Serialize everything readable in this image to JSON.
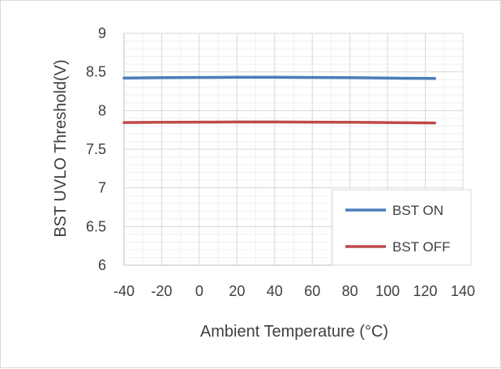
{
  "chart_data": {
    "type": "line",
    "xlabel": "Ambient Temperature (°C)",
    "ylabel": "BST UVLO Threshold(V)",
    "xlim": [
      -40,
      140
    ],
    "ylim": [
      6,
      9
    ],
    "x_ticks": [
      -40,
      -20,
      0,
      20,
      40,
      60,
      80,
      100,
      120,
      140
    ],
    "y_ticks": [
      6,
      6.5,
      7,
      7.5,
      8,
      8.5,
      9
    ],
    "grid": true,
    "legend_position": "bottom-right",
    "series": [
      {
        "name": "BST ON",
        "color": "#4a7ebb",
        "x": [
          -40,
          -20,
          0,
          20,
          40,
          60,
          80,
          100,
          125
        ],
        "y": [
          8.42,
          8.425,
          8.428,
          8.43,
          8.43,
          8.428,
          8.425,
          8.42,
          8.415
        ]
      },
      {
        "name": "BST OFF",
        "color": "#be4b48",
        "x": [
          -40,
          -20,
          0,
          20,
          40,
          60,
          80,
          100,
          125
        ],
        "y": [
          7.845,
          7.848,
          7.85,
          7.852,
          7.852,
          7.85,
          7.848,
          7.845,
          7.84
        ]
      }
    ]
  }
}
